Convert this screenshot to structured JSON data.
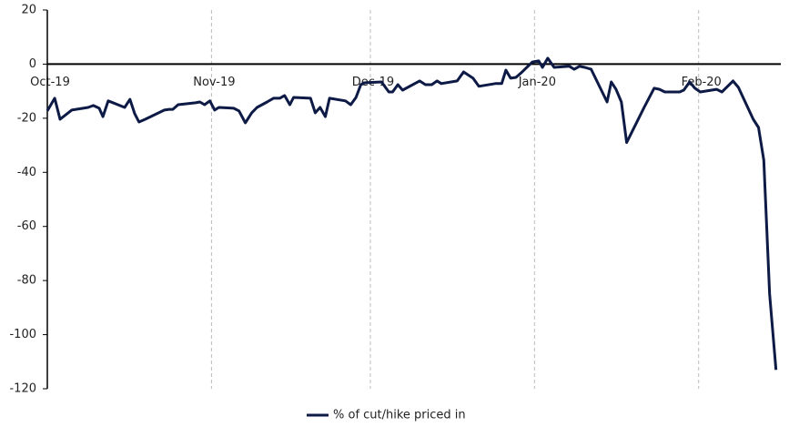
{
  "chart_data": {
    "type": "line",
    "x": [
      0,
      1.4,
      2.4,
      4.6,
      7.7,
      8.7,
      9.8,
      10.5,
      11.5,
      14.6,
      15.6,
      16.5,
      17.3,
      18.5,
      22.1,
      23,
      23.7,
      24.7,
      28,
      28.8,
      29.7,
      30.7,
      31.6,
      32.4,
      35.2,
      36.2,
      37.4,
      38.6,
      39.6,
      41.5,
      42.7,
      43.9,
      44.8,
      45.8,
      46.5,
      49.7,
      50.6,
      51.5,
      52.5,
      53.3,
      56.3,
      57.3,
      58.3,
      59.2,
      60,
      63.1,
      64.5,
      65.2,
      66.2,
      67.1,
      70.3,
      71.4,
      72.6,
      73.6,
      74.4,
      77.4,
      78.6,
      80.4,
      81.5,
      84.6,
      85.8,
      86.6,
      87.5,
      88.5,
      89.5,
      91.6,
      92.8,
      93.5,
      94.5,
      95.7,
      98.6,
      99.5,
      100.5,
      101.5,
      102.7,
      105.7,
      106.5,
      107.4,
      108.4,
      109.4,
      112.7,
      114.6,
      115.6,
      116.6,
      119.4,
      120.2,
      121.3,
      122.3,
      123.3,
      126.4,
      127.4,
      129.5,
      130.5,
      133.3,
      134.3,
      135.3,
      136.4,
      137.6
    ],
    "series": [
      {
        "name": "% of cut/hike priced in",
        "color": "#0d1a45",
        "values": [
          -17.3,
          -12.6,
          -20.4,
          -17,
          -16,
          -15.3,
          -16.3,
          -19.4,
          -13.6,
          -16,
          -13,
          -18.3,
          -21.4,
          -20.4,
          -17,
          -16.7,
          -16.7,
          -15,
          -14.3,
          -14,
          -15,
          -13.6,
          -17,
          -16,
          -16.3,
          -17.3,
          -21.7,
          -18,
          -16,
          -14,
          -12.6,
          -12.6,
          -11.6,
          -15,
          -12.3,
          -12.6,
          -18,
          -16,
          -19.4,
          -12.6,
          -13.6,
          -15,
          -12.3,
          -7.6,
          -6.9,
          -6.6,
          -10.3,
          -10.3,
          -7.6,
          -9.6,
          -6.2,
          -7.6,
          -7.6,
          -6.2,
          -7.2,
          -6.2,
          -2.9,
          -5.2,
          -8.2,
          -7.2,
          -7.2,
          -2.2,
          -5.2,
          -4.9,
          -3.2,
          0.8,
          1.2,
          -1.2,
          2.2,
          -1.2,
          -0.8,
          -1.9,
          -0.8,
          -1.2,
          -1.9,
          -14,
          -6.6,
          -9.3,
          -14,
          -29,
          -16,
          -8.9,
          -9.3,
          -10.3,
          -10.3,
          -9.6,
          -6.6,
          -8.9,
          -10.3,
          -9.3,
          -10.3,
          -6.2,
          -8.6,
          -20.4,
          -23.4,
          -35.5,
          -85,
          -113
        ]
      }
    ],
    "xlim": [
      0,
      138
    ],
    "xticks": [
      {
        "value": 0,
        "label": "Oct-19"
      },
      {
        "value": 31,
        "label": "Nov-19"
      },
      {
        "value": 61,
        "label": "Dec-19"
      },
      {
        "value": 92,
        "label": "Jan-20"
      },
      {
        "value": 123,
        "label": "Feb-20"
      }
    ],
    "ylim": [
      -120,
      20
    ],
    "yticks": [
      20,
      0,
      -20,
      -40,
      -60,
      -80,
      -100,
      -120
    ],
    "grid": true,
    "legend": "bottom"
  }
}
